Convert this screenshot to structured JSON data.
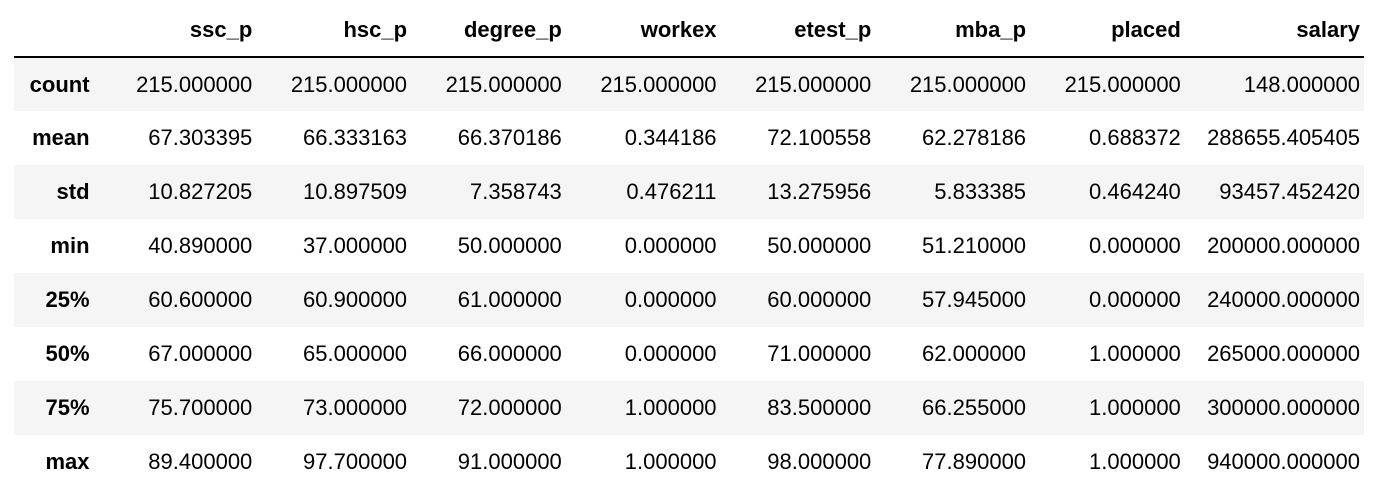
{
  "table": {
    "index_header": "",
    "columns": [
      "ssc_p",
      "hsc_p",
      "degree_p",
      "workex",
      "etest_p",
      "mba_p",
      "placed",
      "salary"
    ],
    "rows": [
      {
        "label": "count",
        "values": [
          "215.000000",
          "215.000000",
          "215.000000",
          "215.000000",
          "215.000000",
          "215.000000",
          "215.000000",
          "148.000000"
        ]
      },
      {
        "label": "mean",
        "values": [
          "67.303395",
          "66.333163",
          "66.370186",
          "0.344186",
          "72.100558",
          "62.278186",
          "0.688372",
          "288655.405405"
        ]
      },
      {
        "label": "std",
        "values": [
          "10.827205",
          "10.897509",
          "7.358743",
          "0.476211",
          "13.275956",
          "5.833385",
          "0.464240",
          "93457.452420"
        ]
      },
      {
        "label": "min",
        "values": [
          "40.890000",
          "37.000000",
          "50.000000",
          "0.000000",
          "50.000000",
          "51.210000",
          "0.000000",
          "200000.000000"
        ]
      },
      {
        "label": "25%",
        "values": [
          "60.600000",
          "60.900000",
          "61.000000",
          "0.000000",
          "60.000000",
          "57.945000",
          "0.000000",
          "240000.000000"
        ]
      },
      {
        "label": "50%",
        "values": [
          "67.000000",
          "65.000000",
          "66.000000",
          "0.000000",
          "71.000000",
          "62.000000",
          "1.000000",
          "265000.000000"
        ]
      },
      {
        "label": "75%",
        "values": [
          "75.700000",
          "73.000000",
          "72.000000",
          "1.000000",
          "83.500000",
          "66.255000",
          "1.000000",
          "300000.000000"
        ]
      },
      {
        "label": "max",
        "values": [
          "89.400000",
          "97.700000",
          "91.000000",
          "1.000000",
          "98.000000",
          "77.890000",
          "1.000000",
          "940000.000000"
        ]
      }
    ]
  }
}
